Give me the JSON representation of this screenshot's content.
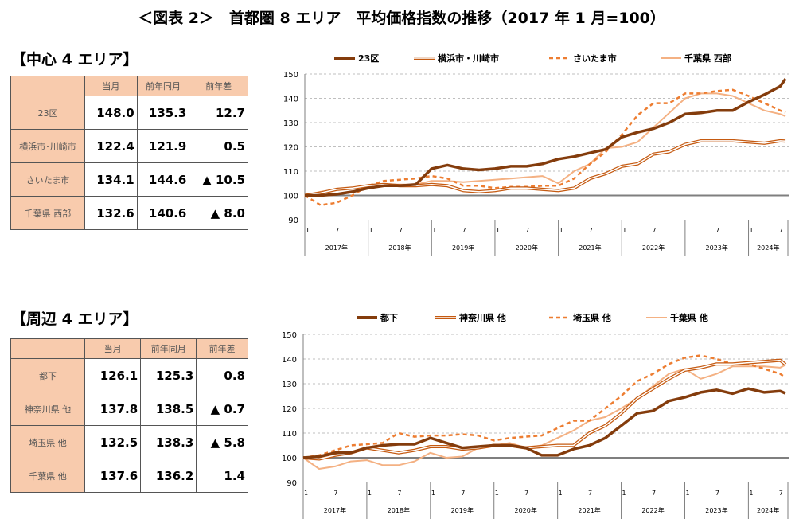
{
  "title": "＜図表 2＞　首都圏 8 エリア　平均価格指数の推移（2017 年 1 月=100）",
  "sections": [
    {
      "heading": "【中心 4 エリア】",
      "table": {
        "headers": [
          "",
          "当月",
          "前年同月",
          "前年差"
        ],
        "rows": [
          [
            "23区",
            "148.0",
            "135.3",
            "12.7"
          ],
          [
            "横浜市･川崎市",
            "122.4",
            "121.9",
            "0.5"
          ],
          [
            "さいたま市",
            "134.1",
            "144.6",
            "▲ 10.5"
          ],
          [
            "千葉県 西部",
            "132.6",
            "140.6",
            "▲ 8.0"
          ]
        ]
      }
    },
    {
      "heading": "【周辺 4 エリア】",
      "table": {
        "headers": [
          "",
          "当月",
          "前年同月",
          "前年差"
        ],
        "rows": [
          [
            "都下",
            "126.1",
            "125.3",
            "0.8"
          ],
          [
            "神奈川県 他",
            "137.8",
            "138.5",
            "▲ 0.7"
          ],
          [
            "埼玉県 他",
            "132.5",
            "138.3",
            "▲ 5.8"
          ],
          [
            "千葉県 他",
            "137.6",
            "136.2",
            "1.4"
          ]
        ]
      }
    }
  ],
  "chart_data": [
    {
      "type": "line",
      "title": "",
      "xlabel": "",
      "ylabel": "",
      "ylim": [
        90,
        150
      ],
      "yticks": [
        "90",
        "100",
        "110",
        "120",
        "130",
        "140",
        "150"
      ],
      "grid": true,
      "legend": "top",
      "month_ticks": [
        "1",
        "7"
      ],
      "years": [
        "2017年",
        "2018年",
        "2019年",
        "2020年",
        "2021年",
        "2022年",
        "2023年",
        "2024年"
      ],
      "x": [
        "2017-01",
        "2017-04",
        "2017-07",
        "2017-10",
        "2018-01",
        "2018-04",
        "2018-07",
        "2018-10",
        "2019-01",
        "2019-04",
        "2019-07",
        "2019-10",
        "2020-01",
        "2020-04",
        "2020-07",
        "2020-10",
        "2021-01",
        "2021-04",
        "2021-07",
        "2021-10",
        "2022-01",
        "2022-04",
        "2022-07",
        "2022-10",
        "2023-01",
        "2023-04",
        "2023-07",
        "2023-10",
        "2024-01",
        "2024-04",
        "2024-07",
        "2024-08"
      ],
      "series": [
        {
          "name": "23区",
          "style": "thick",
          "color": "#843C0C",
          "values": [
            100,
            100,
            100.5,
            101.5,
            103,
            104,
            104,
            104.5,
            111,
            112.5,
            111,
            110.5,
            111,
            112,
            112,
            113,
            115,
            116,
            117.5,
            119,
            124,
            126,
            127.5,
            130,
            133.5,
            134,
            135,
            135,
            138.5,
            141.5,
            145,
            148
          ]
        },
        {
          "name": "横浜市・川崎市",
          "style": "double",
          "color": "#C55A11",
          "values": [
            100,
            101,
            102.5,
            103,
            104,
            104.5,
            104,
            104,
            104.5,
            104,
            102,
            101.5,
            102,
            103,
            103,
            102.5,
            102,
            103,
            107,
            109,
            112,
            113,
            117,
            118,
            121,
            122.5,
            122.5,
            122.5,
            122,
            121.5,
            122.5,
            122.4
          ]
        },
        {
          "name": "さいたま市",
          "style": "dashed",
          "color": "#ED7D31",
          "values": [
            100,
            96,
            97,
            100,
            104,
            106,
            106.5,
            107,
            108,
            107,
            104,
            104,
            103,
            103.5,
            103.5,
            104,
            104,
            107,
            113,
            118,
            125,
            133,
            138,
            138,
            142,
            142,
            143,
            143.5,
            141,
            138,
            135,
            134.1
          ]
        },
        {
          "name": "千葉県 西部",
          "style": "thin",
          "color": "#F4B183",
          "values": [
            100,
            101.5,
            102.5,
            103,
            104,
            104.5,
            104.5,
            104.5,
            106,
            106,
            105.5,
            106,
            106.5,
            107,
            107.5,
            108,
            105,
            110,
            113,
            119.5,
            120,
            122,
            128,
            134,
            140,
            142,
            142,
            141,
            138,
            135,
            133.5,
            132.6
          ]
        }
      ]
    },
    {
      "type": "line",
      "title": "",
      "xlabel": "",
      "ylabel": "",
      "ylim": [
        90,
        150
      ],
      "yticks": [
        "90",
        "100",
        "110",
        "120",
        "130",
        "140",
        "150"
      ],
      "grid": true,
      "legend": "top",
      "month_ticks": [
        "1",
        "7"
      ],
      "years": [
        "2017年",
        "2018年",
        "2019年",
        "2020年",
        "2021年",
        "2022年",
        "2023年",
        "2024年"
      ],
      "x": [
        "2017-01",
        "2017-04",
        "2017-07",
        "2017-10",
        "2018-01",
        "2018-04",
        "2018-07",
        "2018-10",
        "2019-01",
        "2019-04",
        "2019-07",
        "2019-10",
        "2020-01",
        "2020-04",
        "2020-07",
        "2020-10",
        "2021-01",
        "2021-04",
        "2021-07",
        "2021-10",
        "2022-01",
        "2022-04",
        "2022-07",
        "2022-10",
        "2023-01",
        "2023-04",
        "2023-07",
        "2023-10",
        "2024-01",
        "2024-04",
        "2024-07",
        "2024-08"
      ],
      "series": [
        {
          "name": "都下",
          "style": "thick",
          "color": "#843C0C",
          "values": [
            100,
            100.5,
            102,
            102,
            104,
            105,
            105.5,
            105.5,
            108,
            106,
            104,
            104.5,
            105,
            105,
            104,
            101,
            101,
            103.5,
            105,
            108,
            113,
            118,
            119,
            123,
            124.5,
            126.5,
            127.5,
            126,
            128,
            126.5,
            127,
            126.1
          ]
        },
        {
          "name": "神奈川県 他",
          "style": "double",
          "color": "#C55A11",
          "values": [
            100,
            99.5,
            101,
            102,
            104,
            103,
            102,
            103,
            104.5,
            104.5,
            103.5,
            104,
            105,
            105,
            104,
            104.5,
            105,
            105,
            110,
            113,
            118,
            124,
            128,
            132,
            135.5,
            136.5,
            138,
            138,
            138.5,
            139,
            139.5,
            137.8
          ]
        },
        {
          "name": "埼玉県 他",
          "style": "dashed",
          "color": "#ED7D31",
          "values": [
            100,
            101,
            103,
            105,
            105.5,
            106,
            110,
            108.5,
            109,
            109,
            109.5,
            109,
            107,
            108,
            108.5,
            109,
            112,
            115,
            115,
            120,
            125,
            131,
            134,
            138,
            140.5,
            141.5,
            140,
            138,
            138,
            136,
            134,
            132.5
          ]
        },
        {
          "name": "千葉県 他",
          "style": "thin",
          "color": "#F4B183",
          "values": [
            100,
            95.5,
            96.5,
            98.5,
            99,
            97,
            97,
            98.5,
            102,
            100,
            100.5,
            104,
            105,
            106,
            104,
            105,
            108,
            111,
            115,
            116.5,
            120,
            124,
            129,
            134,
            136,
            132,
            134,
            137,
            137,
            137,
            136.5,
            137.6
          ]
        }
      ]
    }
  ]
}
